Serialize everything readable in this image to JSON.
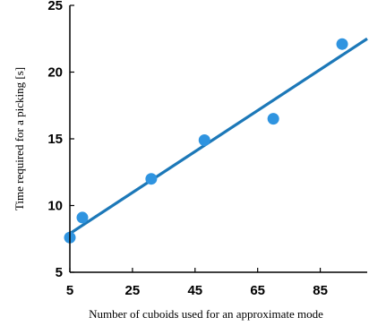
{
  "chart_data": {
    "type": "scatter",
    "title": "",
    "xlabel": "Number of cuboids used for an approximate mode",
    "ylabel": "Time required for a picking  [s]",
    "xlim": [
      5,
      100
    ],
    "ylim": [
      5,
      25
    ],
    "x_ticks": [
      5,
      25,
      45,
      65,
      85
    ],
    "y_ticks": [
      5,
      10,
      15,
      20,
      25
    ],
    "grid": false,
    "legend": "none",
    "series": [
      {
        "x": [
          5,
          9,
          31,
          48,
          70,
          92
        ],
        "y": [
          7.6,
          9.1,
          12.0,
          14.9,
          16.5,
          22.1
        ],
        "color": "#2f94e0"
      }
    ],
    "trendline": {
      "type": "linear",
      "from": [
        5,
        7.9
      ],
      "to": [
        100,
        22.5
      ],
      "color": "#1c78b8"
    }
  }
}
